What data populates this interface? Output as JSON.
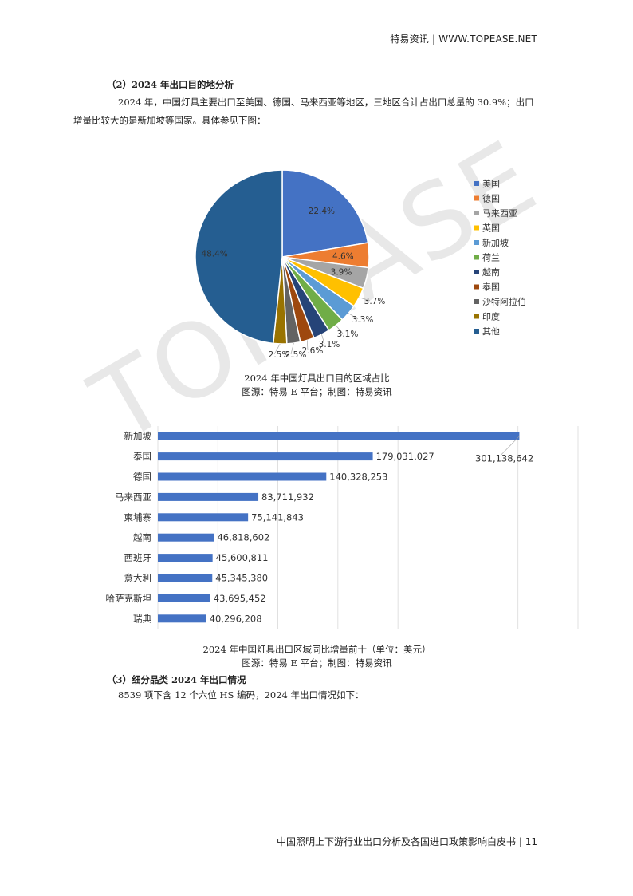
{
  "header": {
    "text": "特易资讯 | WWW.TOPEASE.NET"
  },
  "watermark": {
    "text": "TOPEASE"
  },
  "section2": {
    "title": "（2）2024 年出口目的地分析",
    "para_line1": "2024 年，中国灯具主要出口至美国、德国、马来西亚等地区，三地区合计占出口总量的 30.9%；出口",
    "para_line2": "增量比较大的是新加坡等国家。具体参见下图："
  },
  "pie_caption": {
    "line1": "2024 年中国灯具出口目的区域占比",
    "line2": "图源：特易 E 平台；制图：特易资讯"
  },
  "bar_caption": {
    "line1": "2024 年中国灯具出口区域同比增量前十（单位：美元）",
    "line2": "图源：特易 E 平台；制图：特易资讯"
  },
  "section3": {
    "title": "（3）细分品类 2024 年出口情况",
    "para": "8539 项下含 12 个六位 HS 编码，2024 年出口情况如下："
  },
  "footer": {
    "text": "中国照明上下游行业出口分析及各国进口政策影响白皮书 | 11"
  },
  "chart_data": [
    {
      "type": "pie",
      "title": "2024 年中国灯具出口目的区域占比",
      "legend_position": "right",
      "categories": [
        "美国",
        "德国",
        "马来西亚",
        "英国",
        "新加坡",
        "荷兰",
        "越南",
        "泰国",
        "沙特阿拉伯",
        "印度",
        "其他"
      ],
      "values": [
        22.4,
        4.6,
        3.9,
        3.7,
        3.3,
        3.1,
        3.1,
        2.6,
        2.5,
        2.5,
        48.4
      ],
      "labels": [
        "22.4%",
        "4.6%",
        "3.9%",
        "3.7%",
        "3.3%",
        "3.1%",
        "3.1%",
        "2.6%",
        "2.5%",
        "2.5%",
        "48.4%"
      ],
      "colors": [
        "#4472C4",
        "#ED7D31",
        "#A5A5A5",
        "#FFC000",
        "#5B9BD5",
        "#70AD47",
        "#264478",
        "#9E480E",
        "#636363",
        "#997300",
        "#255E91"
      ]
    },
    {
      "type": "bar",
      "orientation": "horizontal",
      "title": "2024 年中国灯具出口区域同比增量前十（单位：美元）",
      "categories": [
        "新加坡",
        "泰国",
        "德国",
        "马来西亚",
        "柬埔寨",
        "越南",
        "西班牙",
        "意大利",
        "哈萨克斯坦",
        "瑞典"
      ],
      "values": [
        301138642,
        179031027,
        140328253,
        83711932,
        75141843,
        46818602,
        45600811,
        45345380,
        43695452,
        40296208
      ],
      "labels": [
        "301,138,642",
        "179,031,027",
        "140,328,253",
        "83,711,932",
        "75,141,843",
        "46,818,602",
        "45,600,811",
        "45,345,380",
        "43,695,452",
        "40,296,208"
      ],
      "xlim": [
        0,
        350000000
      ],
      "grid": true,
      "color": "#4472C4"
    }
  ]
}
